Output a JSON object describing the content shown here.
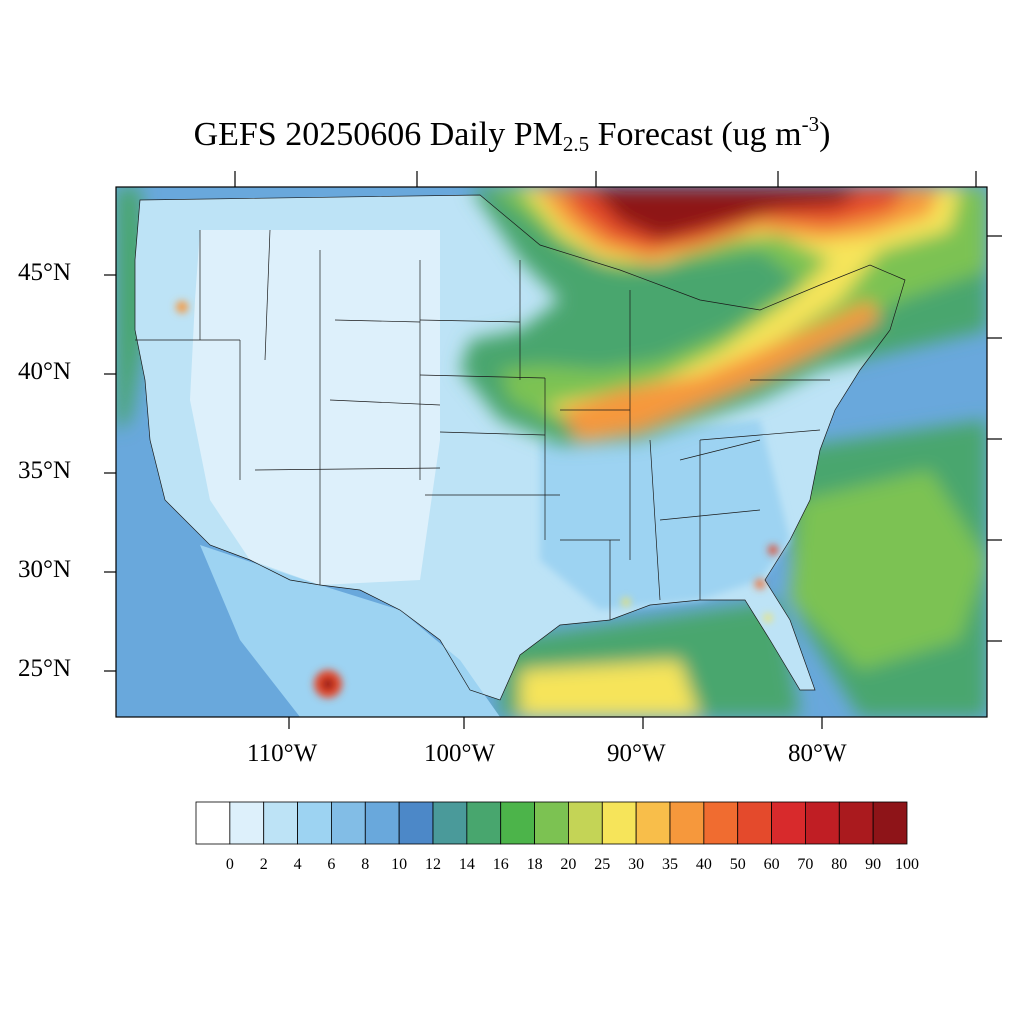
{
  "title": {
    "prefix": "GEFS 20250606 Daily PM",
    "sub": "2.5",
    "middle": " Forecast (ug m",
    "sup": "-3",
    "suffix": ")"
  },
  "axes": {
    "lat_labels": [
      "45°N",
      "40°N",
      "35°N",
      "30°N",
      "25°N"
    ],
    "lon_labels": [
      "110°W",
      "100°W",
      "90°W",
      "80°W"
    ]
  },
  "colorbar": {
    "labels": [
      "0",
      "2",
      "4",
      "6",
      "8",
      "10",
      "12",
      "14",
      "16",
      "18",
      "20",
      "25",
      "30",
      "35",
      "40",
      "50",
      "60",
      "70",
      "80",
      "90",
      "100"
    ],
    "colors": [
      "#ffffff",
      "#ddf0fb",
      "#bde3f6",
      "#9dd3f2",
      "#82bde6",
      "#69a8dc",
      "#4c88c8",
      "#4a9a9a",
      "#48a66e",
      "#4cb44a",
      "#7cc252",
      "#c4d456",
      "#f6e45a",
      "#f8be4a",
      "#f6983c",
      "#f06c30",
      "#e44a2c",
      "#d82a2c",
      "#c01e24",
      "#aa1a1e",
      "#8e1418"
    ]
  },
  "map": {
    "background_color": "#69a8dc",
    "land_color": "#bde3f6",
    "west_color": "#ddf0fb",
    "smoke_colors": [
      "#48a66e",
      "#7cc252",
      "#f6e45a",
      "#f6983c",
      "#e44a2c",
      "#8e1418"
    ]
  }
}
